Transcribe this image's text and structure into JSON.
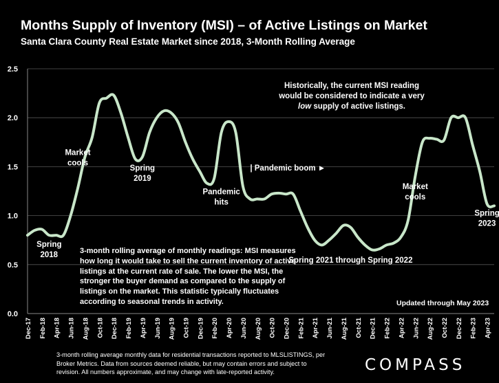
{
  "header": {
    "title": "Months Supply of Inventory (MSI) – of Active Listings on Market",
    "subtitle": "Santa Clara County Real Estate Market since 2018, 3-Month Rolling Average"
  },
  "notes": {
    "historical_line1": "Historically, the current MSI reading",
    "historical_line2": "would be considered to indicate a very",
    "historical_low": "low",
    "historical_line3_rest": " supply of active listings.",
    "definition": "3-month rolling average of monthly readings: MSI measures how long it would take to sell the current inventory of active listings at the current rate of sale. The lower the MSI, the stronger the buyer demand as compared to the supply of listings on the market. This statistic typically fluctuates according to seasonal trends in activity.",
    "updated": "Updated through May 2023"
  },
  "footer": {
    "footnote": "3-month rolling average monthly data for residential transactions reported to MLSLISTINGS, per Broker Metrics. Data from sources deemed reliable, but may contain errors and subject to revision. All numbers approximate, and may change with late-reported activity.",
    "logo": "COMPASS"
  },
  "colors": {
    "background": "#000000",
    "line": "#c8e6c9",
    "text": "#ffffff",
    "grid": "#555555"
  },
  "chart_data": {
    "type": "line",
    "x_tick_labels": [
      "Dec-17",
      "Feb-18",
      "Apr-18",
      "Jun-18",
      "Aug-18",
      "Oct-18",
      "Dec-18",
      "Feb-19",
      "Apr-19",
      "Jun-19",
      "Aug-19",
      "Oct-19",
      "Dec-19",
      "Feb-20",
      "Apr-20",
      "Jun-20",
      "Aug-20",
      "Oct-20",
      "Dec-20",
      "Feb-21",
      "Apr-21",
      "Jun-21",
      "Aug-21",
      "Oct-21",
      "Dec-21",
      "Feb-22",
      "Apr-22",
      "Jun-22",
      "Aug-22",
      "Oct-22",
      "Dec-22",
      "Feb-23",
      "Apr-23"
    ],
    "x": [
      "Dec-17",
      "Jan-18",
      "Feb-18",
      "Mar-18",
      "Apr-18",
      "May-18",
      "Jun-18",
      "Jul-18",
      "Aug-18",
      "Sep-18",
      "Oct-18",
      "Nov-18",
      "Dec-18",
      "Jan-19",
      "Feb-19",
      "Mar-19",
      "Apr-19",
      "May-19",
      "Jun-19",
      "Jul-19",
      "Aug-19",
      "Sep-19",
      "Oct-19",
      "Nov-19",
      "Dec-19",
      "Jan-20",
      "Feb-20",
      "Mar-20",
      "Apr-20",
      "May-20",
      "Jun-20",
      "Jul-20",
      "Aug-20",
      "Sep-20",
      "Oct-20",
      "Nov-20",
      "Dec-20",
      "Jan-21",
      "Feb-21",
      "Mar-21",
      "Apr-21",
      "May-21",
      "Jun-21",
      "Jul-21",
      "Aug-21",
      "Sep-21",
      "Oct-21",
      "Nov-21",
      "Dec-21",
      "Jan-22",
      "Feb-22",
      "Mar-22",
      "Apr-22",
      "May-22",
      "Jun-22",
      "Jul-22",
      "Aug-22",
      "Sep-22",
      "Oct-22",
      "Nov-22",
      "Dec-22",
      "Jan-23",
      "Feb-23",
      "Mar-23",
      "Apr-23",
      "May-23"
    ],
    "values": [
      0.8,
      0.85,
      0.86,
      0.8,
      0.8,
      0.8,
      1.0,
      1.28,
      1.6,
      1.8,
      2.15,
      2.2,
      2.23,
      2.05,
      1.8,
      1.58,
      1.6,
      1.85,
      2.0,
      2.07,
      2.05,
      1.95,
      1.75,
      1.58,
      1.45,
      1.33,
      1.38,
      1.85,
      1.96,
      1.85,
      1.3,
      1.17,
      1.17,
      1.17,
      1.22,
      1.23,
      1.22,
      1.22,
      1.05,
      0.88,
      0.75,
      0.7,
      0.75,
      0.82,
      0.9,
      0.88,
      0.78,
      0.7,
      0.65,
      0.66,
      0.7,
      0.72,
      0.78,
      0.95,
      1.4,
      1.75,
      1.79,
      1.78,
      1.77,
      2.0,
      2.0,
      2.0,
      1.72,
      1.45,
      1.12,
      1.1
    ],
    "ylim": [
      0,
      2.5
    ],
    "yticks": [
      "0.0",
      "0.5",
      "1.0",
      "1.5",
      "2.0",
      "2.5"
    ],
    "grid": true,
    "annotations": [
      {
        "lines": [
          "Spring",
          "2018"
        ],
        "x": "Mar-18",
        "y": 0.68
      },
      {
        "lines": [
          "Market",
          "cools"
        ],
        "x": "Jul-18",
        "y": 1.62
      },
      {
        "lines": [
          "Spring",
          "2019"
        ],
        "x": "Apr-19",
        "y": 1.46
      },
      {
        "lines": [
          "Pandemic",
          "hits"
        ],
        "x": "Mar-20",
        "y": 1.22
      },
      {
        "lines": [
          "| Pandemic boom ►"
        ],
        "x": "Jul-20",
        "y": 1.46,
        "align": "start"
      },
      {
        "lines": [
          "Spring 2021 through Spring 2022"
        ],
        "x": "Sep-21",
        "y": 0.52
      },
      {
        "lines": [
          "Market",
          "cools"
        ],
        "x": "Jun-22",
        "y": 1.27
      },
      {
        "lines": [
          "Spring",
          "2023"
        ],
        "x": "Apr-23",
        "y": 1.0
      }
    ]
  }
}
